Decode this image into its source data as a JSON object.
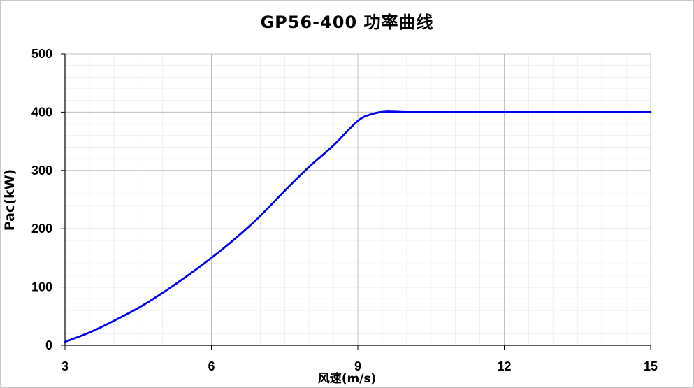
{
  "chart_data": {
    "type": "line",
    "title": "GP56-400  功率曲线",
    "xlabel": "风速(m/s)",
    "ylabel": "Pac(kW)",
    "xlim": [
      3,
      15
    ],
    "ylim": [
      0,
      500
    ],
    "xticks": [
      3,
      6,
      9,
      12,
      15
    ],
    "yticks": [
      0,
      100,
      200,
      300,
      400,
      500
    ],
    "grid": true,
    "legend": "none",
    "series": [
      {
        "color": "#0000ee",
        "x": [
          3.0,
          3.5,
          4.0,
          4.5,
          5.0,
          5.5,
          6.0,
          6.5,
          7.0,
          7.5,
          8.0,
          8.5,
          9.0,
          9.3,
          9.6,
          10.0,
          11.0,
          12.0,
          13.0,
          14.0,
          15.0
        ],
        "y": [
          6,
          22,
          42,
          64,
          90,
          119,
          150,
          184,
          222,
          265,
          306,
          343,
          385,
          397,
          401,
          400,
          400,
          400,
          400,
          400,
          400
        ]
      }
    ]
  }
}
